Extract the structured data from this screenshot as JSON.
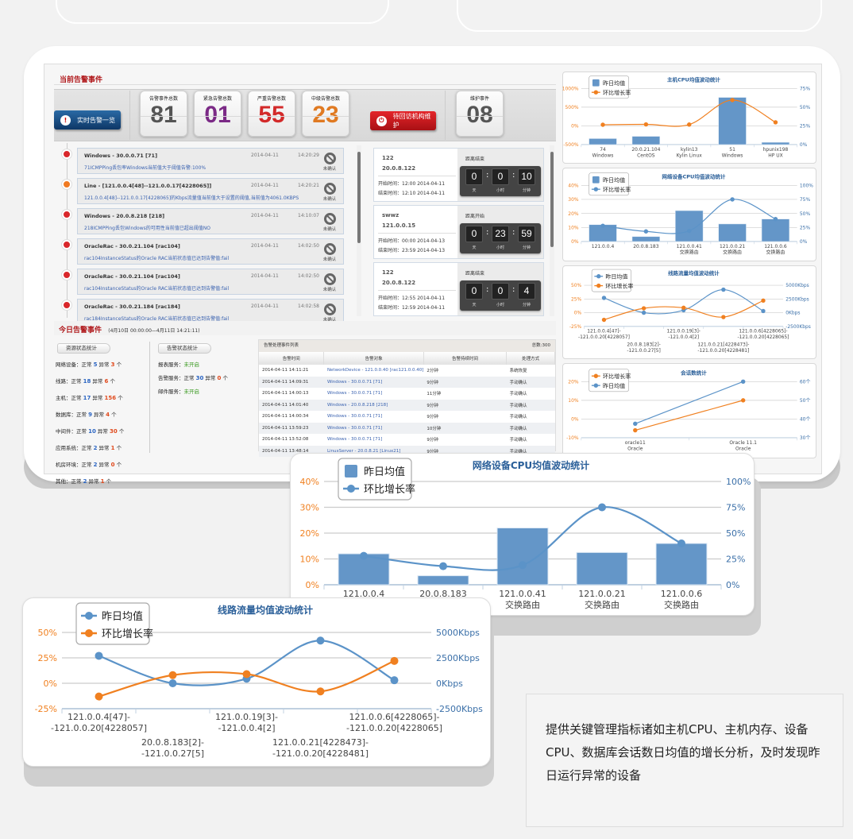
{
  "colors": {
    "accent_orange": "#f08020",
    "accent_blue": "#5b93c8",
    "alarm_red": "#b0181b",
    "button_blue": "#0e3766",
    "button_red": "#c8161c"
  },
  "current_alarms": {
    "title": "当前告警事件",
    "realtime_button": "实时告警一览",
    "counters": [
      {
        "label": "告警事件总数",
        "value": "81",
        "color": "#555555"
      },
      {
        "label": "紧急告警总数",
        "value": "01",
        "color": "#7b2a86"
      },
      {
        "label": "严重告警总数",
        "value": "55",
        "color": "#d32a2a"
      },
      {
        "label": "中级告警总数",
        "value": "23",
        "color": "#e07a22"
      }
    ],
    "maintenance_button": "待回访机构维护",
    "maintenance_counter": {
      "label": "维护事件",
      "value": "08",
      "color": "#555555"
    },
    "events": [
      {
        "title": "Windows - 30.0.0.71 [71]",
        "desc": "71ICMPPing丢包率Windows当前值大于阈值告警:100%",
        "date": "2014-04-11",
        "time": "14:20:29",
        "status": "未确认",
        "level": "#d9262a"
      },
      {
        "title": "Line - [121.0.0.4[48]--121.0.0.17[4228065]]",
        "desc": "121.0.0.4[48]--121.0.0.17[4228065]的Kbps流量值当前值大于设置的阈值,当前值为4061.0KBPS",
        "date": "2014-04-11",
        "time": "14:20:21",
        "status": "未确认",
        "level": "#f07a22"
      },
      {
        "title": "Windows - 20.0.8.218 [218]",
        "desc": "218ICMPPing丢包Windows的可用性当前值已超出阈值NO",
        "date": "2014-04-11",
        "time": "14:10:07",
        "status": "未确认",
        "level": "#d9262a"
      },
      {
        "title": "OracleRac - 30.0.21.104 [rac104]",
        "desc": "rac104InstanceStatus的Oracle RAC当前状态值已达到告警值:fail",
        "date": "2014-04-11",
        "time": "14:02:50",
        "status": "未确认",
        "level": "#d9262a"
      },
      {
        "title": "OracleRac - 30.0.21.104 [rac104]",
        "desc": "rac104InstanceStatus的Oracle RAC当前状态值已达到告警值:fail",
        "date": "2014-04-11",
        "time": "14:02:50",
        "status": "未确认",
        "level": "#d9262a"
      },
      {
        "title": "OracleRac - 30.0.21.184 [rac184]",
        "desc": "rac184InstanceStatus的Oracle RAC当前状态值已达到告警值:fail",
        "date": "2014-04-11",
        "time": "14:02:58",
        "status": "未确认",
        "level": "#d9262a"
      }
    ],
    "countdowns": [
      {
        "name": "122",
        "ip": "20.0.8.122",
        "start": "开始时间：12:00   2014-04-11",
        "end": "结束时间：12:10   2014-04-11",
        "label": "距离结束",
        "days": "0",
        "hours": "0",
        "minutes": "10",
        "units": [
          "天",
          "小时",
          "分钟"
        ]
      },
      {
        "name": "swwz",
        "ip": "121.0.0.15",
        "start": "开始时间：00:00   2014-04-13",
        "end": "结束时间：23:59   2014-04-13",
        "label": "距离开始",
        "days": "0",
        "hours": "23",
        "minutes": "59",
        "units": [
          "天",
          "小时",
          "分钟"
        ]
      },
      {
        "name": "122",
        "ip": "20.0.8.122",
        "start": "开始时间：12:55   2014-04-11",
        "end": "结束时间：12:59   2014-04-11",
        "label": "距离结束",
        "days": "0",
        "hours": "0",
        "minutes": "4",
        "units": [
          "天",
          "小时",
          "分钟"
        ]
      }
    ]
  },
  "today_alarms": {
    "title": "今日告警事件",
    "range": "(4月10日 00:00:00—4月11日 14:21:11)",
    "resource_tab": "资源状态统计",
    "resource_stats": [
      {
        "name": "网络设备：",
        "ok_label": "正常",
        "ok": "5",
        "bad_label": "异常",
        "bad": "3",
        "unit": "个"
      },
      {
        "name": "线路：",
        "ok_label": "正常",
        "ok": "18",
        "bad_label": "异常",
        "bad": "6",
        "unit": "个"
      },
      {
        "name": "主机：",
        "ok_label": "正常",
        "ok": "17",
        "bad_label": "异常",
        "bad": "156",
        "unit": "个"
      },
      {
        "name": "数据库：",
        "ok_label": "正常",
        "ok": "9",
        "bad_label": "异常",
        "bad": "4",
        "unit": "个"
      },
      {
        "name": "中间件：",
        "ok_label": "正常",
        "ok": "10",
        "bad_label": "异常",
        "bad": "30",
        "unit": "个"
      },
      {
        "name": "应用系统：",
        "ok_label": "正常",
        "ok": "2",
        "bad_label": "异常",
        "bad": "1",
        "unit": "个"
      },
      {
        "name": "机房环境：",
        "ok_label": "正常",
        "ok": "2",
        "bad_label": "异常",
        "bad": "0",
        "unit": "个"
      },
      {
        "name": "其他：",
        "ok_label": "正常",
        "ok": "2",
        "bad_label": "异常",
        "bad": "1",
        "unit": "个"
      }
    ],
    "service_tab": "告警状态统计",
    "service_stats": [
      {
        "name": "报表服务：",
        "value": "未开启"
      },
      {
        "name": "告警服务：",
        "ok_label": "正常",
        "ok": "30",
        "bad_label": "异常",
        "bad": "0",
        "unit": "个"
      },
      {
        "name": "邮件服务：",
        "value": "未开启"
      }
    ],
    "table": {
      "caption": "告警处理事件列表",
      "total": "总数:300",
      "columns": [
        "告警时间",
        "告警对象",
        "告警持续时间",
        "处理方式"
      ],
      "rows": [
        [
          "2014-04-11 14:11:21",
          "NetworkDevice - 121.0.0.40 [rac121.0.0.40]",
          "2分钟",
          "系统恢复"
        ],
        [
          "2014-04-11 14:09:31",
          "Windows - 30.0.0.71 [71]",
          "9分钟",
          "手动确认"
        ],
        [
          "2014-04-11 14:00:13",
          "Windows - 30.0.0.71 [71]",
          "11分钟",
          "手动确认"
        ],
        [
          "2014-04-11 14:01:40",
          "Windows - 20.0.8.218 [218]",
          "9分钟",
          "手动确认"
        ],
        [
          "2014-04-11 14:00:34",
          "Windows - 30.0.0.71 [71]",
          "9分钟",
          "手动确认"
        ],
        [
          "2014-04-11 13:59:23",
          "Windows - 30.0.0.71 [71]",
          "10分钟",
          "手动确认"
        ],
        [
          "2014-04-11 13:52:08",
          "Windows - 30.0.0.71 [71]",
          "9分钟",
          "手动确认"
        ],
        [
          "2014-04-11 13:48:14",
          "LinuxServer - 20.0.8.21 [Linux21]",
          "9分钟",
          "手动确认"
        ]
      ]
    }
  },
  "chart_data": [
    {
      "type": "bar+line",
      "title": "主机CPU均值波动统计",
      "smooth": true,
      "categories": [
        [
          "74",
          "Windows"
        ],
        [
          "20.0.21.104",
          "CentOS"
        ],
        [
          "kylin13",
          "Kylin Linux"
        ],
        [
          "51",
          "Windows"
        ],
        [
          "hpunix198",
          "HP UX"
        ]
      ],
      "yaxis_left": {
        "range": [
          -500,
          1000
        ],
        "tick_labels": [
          "-500%",
          "0%",
          "500%",
          "1000%"
        ]
      },
      "yaxis_right": {
        "range": [
          0,
          75
        ],
        "tick_labels": [
          "0%",
          "25%",
          "50%",
          "75%"
        ]
      },
      "series": [
        {
          "name": "昨日均值",
          "type": "bar",
          "axis": "right",
          "values": [
            8,
            11,
            0,
            63,
            3
          ]
        },
        {
          "name": "环比增长率",
          "type": "line",
          "axis": "left",
          "values": [
            30,
            40,
            35,
            690,
            95
          ]
        }
      ]
    },
    {
      "type": "bar+line",
      "title": "网络设备CPU均值波动统计",
      "smooth": true,
      "categories": [
        [
          "121.0.0.4"
        ],
        [
          "20.0.8.183"
        ],
        [
          "121.0.0.41",
          "交换路由"
        ],
        [
          "121.0.0.21",
          "交换路由"
        ],
        [
          "121.0.0.6",
          "交换路由"
        ]
      ],
      "yaxis_left": {
        "range": [
          0,
          40
        ],
        "tick_labels": [
          "0%",
          "10%",
          "20%",
          "30%",
          "40%"
        ]
      },
      "yaxis_right": {
        "range": [
          0,
          100
        ],
        "tick_labels": [
          "0%",
          "25%",
          "50%",
          "75%",
          "100%"
        ]
      },
      "series": [
        {
          "name": "昨日均值",
          "type": "bar",
          "axis": "left",
          "values": [
            12,
            3.5,
            22,
            12.5,
            16
          ]
        },
        {
          "name": "环比增长率",
          "type": "line",
          "axis": "right",
          "values": [
            28,
            18,
            19,
            75,
            40
          ]
        }
      ]
    },
    {
      "type": "line",
      "title": "线路流量均值波动统计",
      "smooth": true,
      "categories": [
        [
          "121.0.0.4[47]-",
          "-121.0.0.20[4228057]"
        ],
        [
          "20.0.8.183[2]-",
          "-121.0.0.27[5]"
        ],
        [
          "121.0.0.19[3]-",
          "-121.0.0.4[2]"
        ],
        [
          "121.0.0.21[4228473]-",
          "-121.0.0.20[4228481]"
        ],
        [
          "121.0.0.6[4228065]-",
          "-121.0.0.20[4228065]"
        ]
      ],
      "yaxis_left": {
        "range": [
          -25,
          50
        ],
        "tick_labels": [
          "-25%",
          "0%",
          "25%",
          "50%"
        ]
      },
      "yaxis_right": {
        "range": [
          -2500,
          5000
        ],
        "tick_labels": [
          "-2500Kbps",
          "0Kbps",
          "2500Kbps",
          "5000Kbps"
        ]
      },
      "series": [
        {
          "name": "昨日均值",
          "type": "line",
          "axis": "right",
          "values": [
            2700,
            0,
            450,
            4200,
            300
          ]
        },
        {
          "name": "环比增长率",
          "type": "line",
          "axis": "left",
          "values": [
            -13,
            8,
            9,
            -8,
            22
          ]
        }
      ]
    },
    {
      "type": "line",
      "title": "会话数统计",
      "smooth": false,
      "categories": [
        [
          "oracle11",
          "Oracle"
        ],
        [
          "Oracle 11.1",
          "Oracle"
        ]
      ],
      "yaxis_left": {
        "range": [
          -10,
          20
        ],
        "tick_labels": [
          "-10%",
          "0%",
          "10%",
          "20%"
        ]
      },
      "yaxis_right": {
        "range": [
          30,
          60
        ],
        "tick_labels": [
          "30个",
          "40个",
          "50个",
          "60个"
        ]
      },
      "series": [
        {
          "name": "环比增长率",
          "type": "line",
          "axis": "left",
          "values": [
            -6,
            10
          ]
        },
        {
          "name": "昨日均值",
          "type": "line",
          "axis": "right",
          "values": [
            37.5,
            60
          ]
        }
      ]
    }
  ],
  "description": "提供关键管理指标诸如主机CPU、主机内存、设备CPU、数据库会话数日均值的增长分析，及时发现昨日运行异常的设备"
}
